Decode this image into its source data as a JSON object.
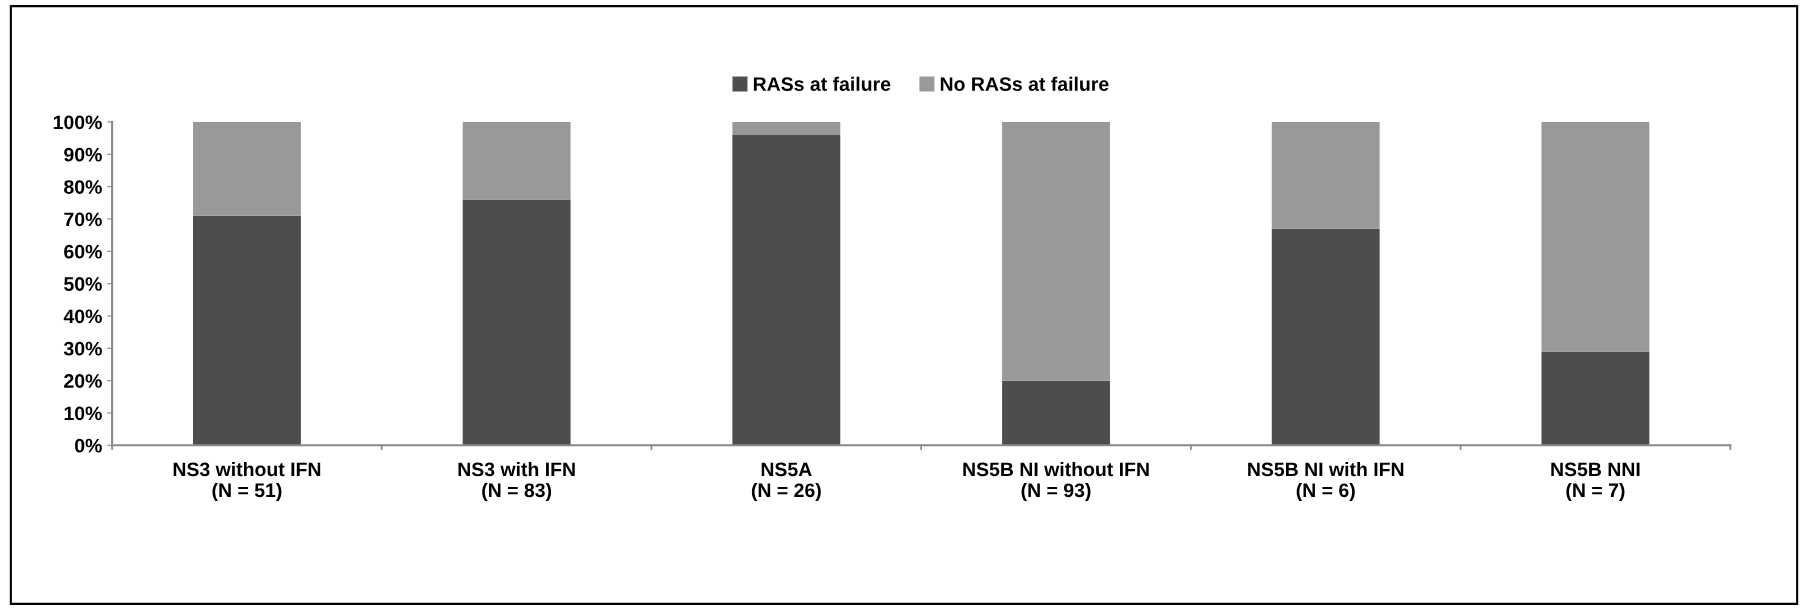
{
  "chart_data": {
    "type": "bar",
    "stacked": true,
    "categories": [
      "NS3 without IFN\n(N = 51)",
      "NS3 with IFN\n(N = 83)",
      "NS5A\n(N = 26)",
      "NS5B NI without IFN\n(N = 93)",
      "NS5B NI with IFN\n(N = 6)",
      "NS5B NNI\n(N = 7)"
    ],
    "series": [
      {
        "name": "RASs at failure",
        "color": "#4d4d4d",
        "values": [
          71,
          76,
          96,
          20,
          67,
          29
        ]
      },
      {
        "name": "No RASs at failure",
        "color": "#999999",
        "values": [
          29,
          24,
          4,
          80,
          33,
          71
        ]
      }
    ],
    "ylim": [
      0,
      100
    ],
    "yticks": [
      {
        "value": 0,
        "label": "0%"
      },
      {
        "value": 10,
        "label": "10%"
      },
      {
        "value": 20,
        "label": "20%"
      },
      {
        "value": 30,
        "label": "30%"
      },
      {
        "value": 40,
        "label": "40%"
      },
      {
        "value": 50,
        "label": "50%"
      },
      {
        "value": 60,
        "label": "60%"
      },
      {
        "value": 70,
        "label": "70%"
      },
      {
        "value": 80,
        "label": "80%"
      },
      {
        "value": 90,
        "label": "90%"
      },
      {
        "value": 100,
        "label": "100%"
      }
    ],
    "grid": false,
    "legend": "top"
  }
}
